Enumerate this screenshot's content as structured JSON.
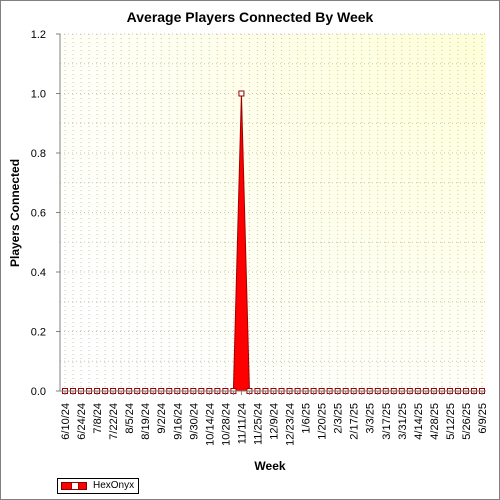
{
  "chart_data": {
    "type": "area",
    "title": "Average Players Connected By Week",
    "xlabel": "Week",
    "ylabel": "Players Connected",
    "ylim": [
      0,
      1.2
    ],
    "yticks": [
      "0.0",
      "0.2",
      "0.4",
      "0.6",
      "0.8",
      "1.0",
      "1.2"
    ],
    "x_tick_labels": [
      "6/10/24",
      "6/24/24",
      "7/8/24",
      "7/22/24",
      "8/5/24",
      "8/19/24",
      "9/2/24",
      "9/16/24",
      "9/30/24",
      "10/14/24",
      "10/28/24",
      "11/11/24",
      "11/25/24",
      "12/9/24",
      "12/23/24",
      "1/6/25",
      "1/20/25",
      "2/3/25",
      "2/17/25",
      "3/3/25",
      "3/17/25",
      "3/31/25",
      "4/14/25",
      "4/28/25",
      "5/12/25",
      "5/26/25",
      "6/9/25"
    ],
    "x": [
      "6/10/24",
      "6/17/24",
      "6/24/24",
      "7/1/24",
      "7/8/24",
      "7/15/24",
      "7/22/24",
      "7/29/24",
      "8/5/24",
      "8/12/24",
      "8/19/24",
      "8/26/24",
      "9/2/24",
      "9/9/24",
      "9/16/24",
      "9/23/24",
      "9/30/24",
      "10/7/24",
      "10/14/24",
      "10/21/24",
      "10/28/24",
      "11/4/24",
      "11/11/24",
      "11/18/24",
      "11/25/24",
      "12/2/24",
      "12/9/24",
      "12/16/24",
      "12/23/24",
      "12/30/24",
      "1/6/25",
      "1/13/25",
      "1/20/25",
      "1/27/25",
      "2/3/25",
      "2/10/25",
      "2/17/25",
      "2/24/25",
      "3/3/25",
      "3/10/25",
      "3/17/25",
      "3/24/25",
      "3/31/25",
      "4/7/25",
      "4/14/25",
      "4/21/25",
      "4/28/25",
      "5/5/25",
      "5/12/25",
      "5/19/25",
      "5/26/25",
      "6/2/25",
      "6/9/25"
    ],
    "series": [
      {
        "name": "HexOnyx",
        "color": "#ff0000",
        "values": [
          0,
          0,
          0,
          0,
          0,
          0,
          0,
          0,
          0,
          0,
          0,
          0,
          0,
          0,
          0,
          0,
          0,
          0,
          0,
          0,
          0,
          0,
          1,
          0,
          0,
          0,
          0,
          0,
          0,
          0,
          0,
          0,
          0,
          0,
          0,
          0,
          0,
          0,
          0,
          0,
          0,
          0,
          0,
          0,
          0,
          0,
          0,
          0,
          0,
          0,
          0,
          0,
          0
        ]
      }
    ],
    "grid": true,
    "legend_position": "bottom-left"
  },
  "legend": {
    "label": "HexOnyx"
  },
  "colors": {
    "plot_bg_top": "#ffffe0",
    "plot_bg_bottom": "#ffffff",
    "series": "#ff0000",
    "series_edge": "#a00000"
  }
}
